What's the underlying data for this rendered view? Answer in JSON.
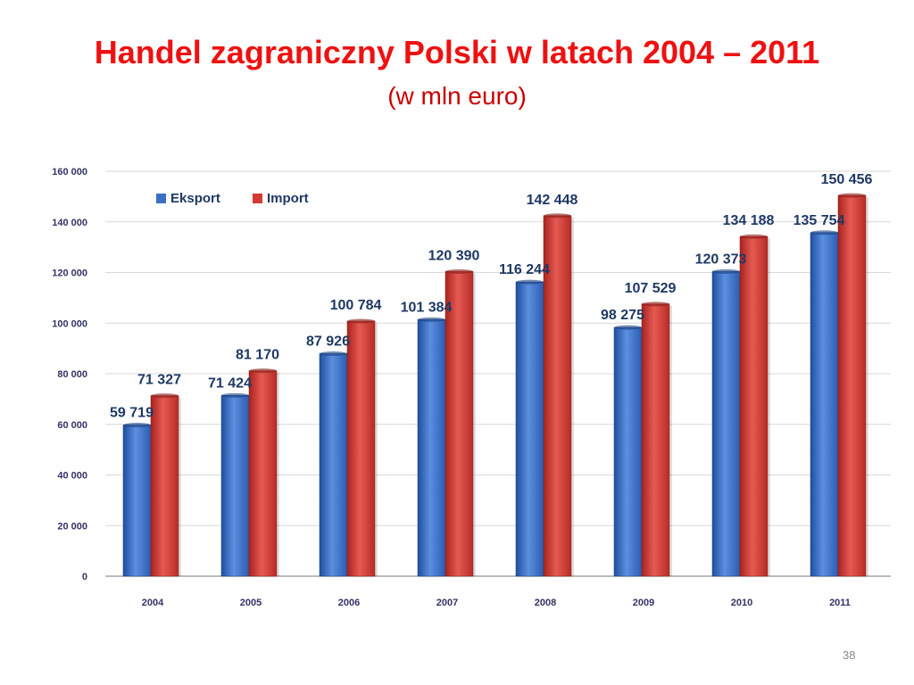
{
  "slide": {
    "title": "Handel zagraniczny Polski w latach 2004 – 2011",
    "subtitle": "(w mln euro)",
    "page_number": "38"
  },
  "colors": {
    "title": "#ee1111",
    "eksport": "#3a6fc4",
    "import": "#d23a32",
    "labels": "#1f3864"
  },
  "chart_data": {
    "type": "bar",
    "categories": [
      "2004",
      "2005",
      "2006",
      "2007",
      "2008",
      "2009",
      "2010",
      "2011"
    ],
    "series": [
      {
        "name": "Eksport",
        "values": [
          59719,
          71424,
          87926,
          101384,
          116244,
          98275,
          120373,
          135754
        ],
        "labels": [
          "59 719",
          "71 424",
          "87 926",
          "101 384",
          "116 244",
          "98 275",
          "120 373",
          "135 754"
        ]
      },
      {
        "name": "Import",
        "values": [
          71327,
          81170,
          100784,
          120390,
          142448,
          107529,
          134188,
          150456
        ],
        "labels": [
          "71 327",
          "81 170",
          "100 784",
          "120 390",
          "142 448",
          "107 529",
          "134 188",
          "150 456"
        ]
      }
    ],
    "y_ticks": [
      0,
      20000,
      40000,
      60000,
      80000,
      100000,
      120000,
      140000,
      160000
    ],
    "y_tick_labels": [
      "0",
      "20 000",
      "40 000",
      "60 000",
      "80 000",
      "100 000",
      "120 000",
      "140 000",
      "160 000"
    ],
    "ylim": [
      0,
      160000
    ],
    "grid": true,
    "legend_position": "top-left"
  }
}
